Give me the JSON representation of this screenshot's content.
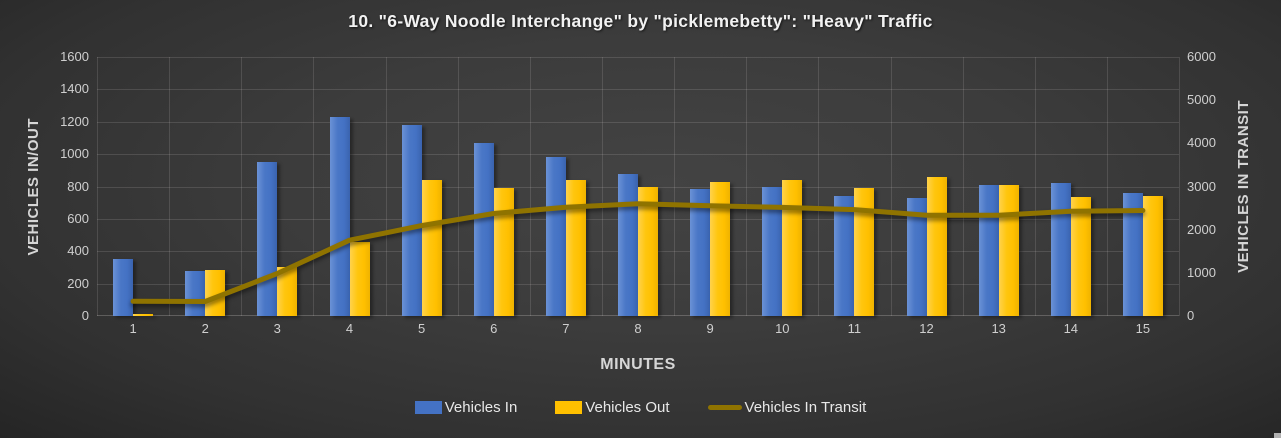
{
  "chart": {
    "title": "10. \"6-Way Noodle Interchange\" by \"picklemebetty\": \"Heavy\" Traffic",
    "x_axis": {
      "title": "MINUTES"
    },
    "left_axis": {
      "title": "VEHICLES IN/OUT"
    },
    "right_axis": {
      "title": "VEHICLES IN TRANSIT"
    }
  },
  "chart_data": {
    "type": "bar",
    "subtype": "combo-bar-line",
    "title": "10. \"6-Way Noodle Interchange\" by \"picklemebetty\": \"Heavy\" Traffic",
    "xlabel": "MINUTES",
    "ylabel_left": "VEHICLES IN/OUT",
    "ylabel_right": "VEHICLES IN TRANSIT",
    "categories": [
      1,
      2,
      3,
      4,
      5,
      6,
      7,
      8,
      9,
      10,
      11,
      12,
      13,
      14,
      15
    ],
    "series": [
      {
        "name": "Vehicles In",
        "type": "bar",
        "axis": "left",
        "color": "#4472c4",
        "values": [
          350,
          280,
          950,
          1230,
          1180,
          1070,
          985,
          880,
          785,
          800,
          740,
          730,
          810,
          825,
          760
        ]
      },
      {
        "name": "Vehicles Out",
        "type": "bar",
        "axis": "left",
        "color": "#ffc000",
        "values": [
          10,
          285,
          300,
          460,
          840,
          790,
          840,
          800,
          830,
          840,
          790,
          860,
          810,
          735,
          740
        ]
      },
      {
        "name": "Vehicles In Transit",
        "type": "line",
        "axis": "right",
        "color": "#8f7300",
        "values": [
          340,
          335,
          985,
          1755,
          2095,
          2375,
          2520,
          2600,
          2555,
          2515,
          2465,
          2335,
          2335,
          2425,
          2445
        ]
      }
    ],
    "left_axis_ticks": [
      0,
      200,
      400,
      600,
      800,
      1000,
      1200,
      1400,
      1600
    ],
    "right_axis_ticks": [
      0,
      1000,
      2000,
      3000,
      4000,
      5000,
      6000
    ],
    "left_ylim": [
      0,
      1600
    ],
    "right_ylim": [
      0,
      6000
    ],
    "grid": true,
    "legend_position": "bottom"
  },
  "colors": {
    "background": "#3a3a3a",
    "bar_blue": "#4472c4",
    "bar_gold": "#ffc000",
    "line_dark_gold": "#8f7300",
    "text": "#d6d6d6"
  }
}
